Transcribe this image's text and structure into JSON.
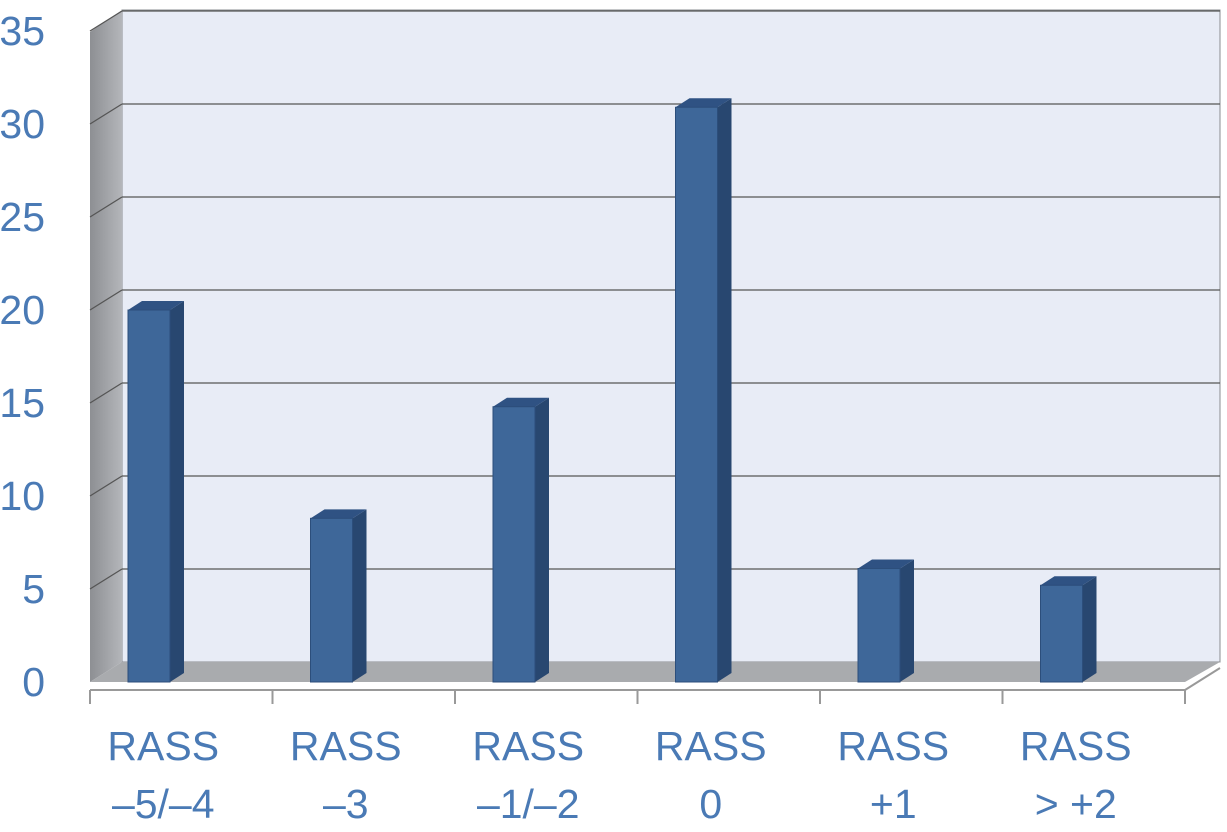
{
  "chart_data": {
    "type": "bar3d",
    "categories": [
      [
        "RASS",
        "–5/–4"
      ],
      [
        "RASS",
        "–3"
      ],
      [
        "RASS",
        "–1/–2"
      ],
      [
        "RASS",
        "0"
      ],
      [
        "RASS",
        "+1"
      ],
      [
        "RASS",
        "> +2"
      ]
    ],
    "values": [
      20,
      8.8,
      14.8,
      30.9,
      6.1,
      5.2
    ],
    "color": "#3e6799",
    "ylim": [
      0,
      35
    ],
    "yticks": [
      0,
      5,
      10,
      15,
      20,
      25,
      30,
      35
    ],
    "grid": true
  }
}
